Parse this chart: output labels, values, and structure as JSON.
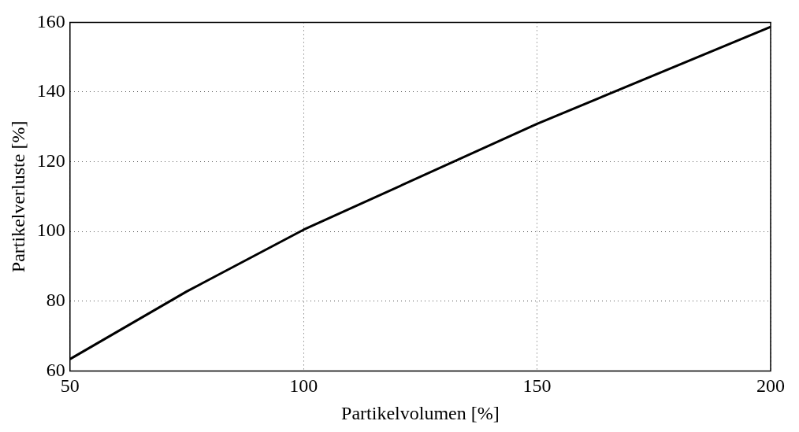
{
  "chart_data": {
    "type": "line",
    "xlabel": "Partikelvolumen [%]",
    "ylabel": "Partikelverluste [%]",
    "x": [
      50,
      75,
      100,
      150,
      200
    ],
    "series": [
      {
        "color": "#000000",
        "values": [
          63.4,
          82.8,
          100.5,
          130.9,
          158.7
        ]
      }
    ],
    "xlim": [
      50,
      200
    ],
    "xticks": [
      50,
      100,
      150,
      200
    ],
    "ylim": [
      60,
      160
    ],
    "yticks": [
      60,
      80,
      100,
      120,
      140,
      160
    ],
    "grid": true,
    "line_style": "solid",
    "marker": "none"
  }
}
